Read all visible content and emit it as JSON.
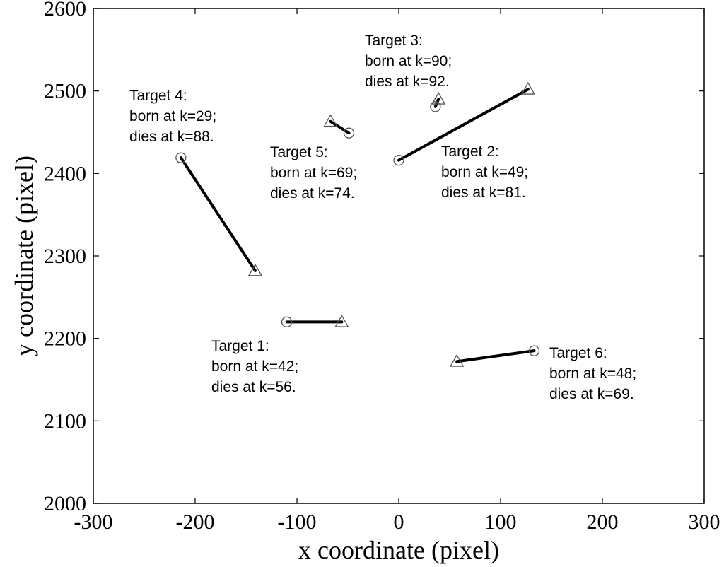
{
  "chart_data": {
    "type": "line",
    "xlabel": "x coordinate (pixel)",
    "ylabel": "y coordinate (pixel)",
    "xlim": [
      -300,
      300
    ],
    "ylim": [
      2000,
      2600
    ],
    "xticks": [
      -300,
      -200,
      -100,
      0,
      100,
      200,
      300
    ],
    "yticks": [
      2000,
      2100,
      2200,
      2300,
      2400,
      2500,
      2600
    ],
    "grid": false,
    "start_marker": "circle",
    "end_marker": "triangle",
    "tracks": [
      {
        "id": 1,
        "start": [
          -110,
          2220
        ],
        "end": [
          -56,
          2220
        ],
        "annotation": [
          "Target 1:",
          "born at k=42;",
          "dies at k=56."
        ]
      },
      {
        "id": 2,
        "start": [
          0,
          2416
        ],
        "end": [
          127,
          2502
        ],
        "annotation": [
          "Target 2:",
          "born at k=49;",
          "dies at k=81."
        ]
      },
      {
        "id": 3,
        "start": [
          36,
          2481
        ],
        "end": [
          39,
          2490
        ],
        "annotation": [
          "Target 3:",
          "born at k=90;",
          "dies at k=92."
        ]
      },
      {
        "id": 4,
        "start": [
          -214,
          2419
        ],
        "end": [
          -141,
          2282
        ],
        "annotation": [
          "Target 4:",
          "born at k=29;",
          "dies at k=88."
        ]
      },
      {
        "id": 5,
        "start": [
          -49,
          2449
        ],
        "end": [
          -67,
          2463
        ],
        "annotation": [
          "Target 5:",
          "born at k=69;",
          "dies at k=74."
        ]
      },
      {
        "id": 6,
        "start": [
          133,
          2185
        ],
        "end": [
          57,
          2172
        ],
        "annotation": [
          "Target 6:",
          "born at k=48;",
          "dies at k=69."
        ]
      }
    ]
  }
}
